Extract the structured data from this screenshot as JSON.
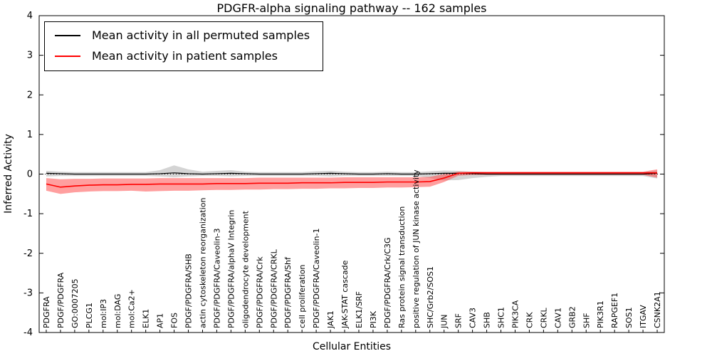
{
  "chart_data": {
    "type": "line",
    "title": "PDGFR-alpha signaling pathway -- 162 samples",
    "xlabel": "Cellular Entities",
    "ylabel": "Inferred Activity",
    "ylim": [
      -4,
      4
    ],
    "y_ticks": [
      -4,
      -3,
      -2,
      -1,
      0,
      1,
      2,
      3,
      4
    ],
    "grid": false,
    "legend_position": "upper left",
    "zero_line": 0,
    "categories": [
      "PDGFRA",
      "PDGF/PDGFRA",
      "GO:0007205",
      "PLCG1",
      "mol:IP3",
      "mol:DAG",
      "mol:Ca2+",
      "ELK1",
      "AP1",
      "FOS",
      "PDGF/PDGFRA/SHB",
      "actin cytoskeleton reorganization",
      "PDGF/PDGFRA/Caveolin-3",
      "PDGF/PDGFRA/alphaV Integrin",
      "oligodendrocyte development",
      "PDGF/PDGFRA/Crk",
      "PDGF/PDGFRA/CRKL",
      "PDGF/PDGFRA/Shf",
      "cell proliferation",
      "PDGF/PDGFRA/Caveolin-1",
      "JAK1",
      "JAK-STAT cascade",
      "ELK1/SRF",
      "PI3K",
      "PDGF/PDGFRA/Crk/C3G",
      "Ras protein signal transduction",
      "positive regulation of JUN kinase activity",
      "SHC/Grb2/SOS1",
      "JUN",
      "SRF",
      "CAV3",
      "SHB",
      "SHC1",
      "PIK3CA",
      "CRK",
      "CRKL",
      "CAV1",
      "GRB2",
      "SHF",
      "PIK3R1",
      "RAPGEF1",
      "SOS1",
      "ITGAV",
      "CSNK2A1"
    ],
    "series": [
      {
        "name": "Mean activity in all permuted samples",
        "color": "#000000",
        "band_color": "#aaaaaa",
        "band_opacity": 0.5,
        "values": [
          0.02,
          0.01,
          0.0,
          0.0,
          0.0,
          0.0,
          0.0,
          0.0,
          0.01,
          0.03,
          0.01,
          0.0,
          0.01,
          0.02,
          0.01,
          0.0,
          0.0,
          0.0,
          0.0,
          0.01,
          0.02,
          0.01,
          0.0,
          0.0,
          0.01,
          0.0,
          0.0,
          0.01,
          0.02,
          0.02,
          0.01,
          0.0,
          0.0,
          0.0,
          0.0,
          0.0,
          0.0,
          0.0,
          0.0,
          0.0,
          0.0,
          0.0,
          0.0,
          0.02
        ],
        "band_upper": [
          0.08,
          0.06,
          0.05,
          0.05,
          0.05,
          0.05,
          0.05,
          0.05,
          0.1,
          0.22,
          0.12,
          0.06,
          0.08,
          0.1,
          0.06,
          0.05,
          0.05,
          0.05,
          0.05,
          0.07,
          0.08,
          0.06,
          0.05,
          0.05,
          0.06,
          0.05,
          0.05,
          0.07,
          0.09,
          0.08,
          0.06,
          0.05,
          0.05,
          0.05,
          0.05,
          0.05,
          0.05,
          0.05,
          0.05,
          0.05,
          0.05,
          0.05,
          0.05,
          0.09
        ],
        "band_lower": [
          -0.06,
          -0.05,
          -0.05,
          -0.05,
          -0.05,
          -0.05,
          -0.05,
          -0.05,
          -0.06,
          -0.08,
          -0.06,
          -0.05,
          -0.05,
          -0.06,
          -0.05,
          -0.05,
          -0.05,
          -0.05,
          -0.05,
          -0.05,
          -0.06,
          -0.05,
          -0.05,
          -0.05,
          -0.05,
          -0.05,
          -0.05,
          -0.1,
          -0.16,
          -0.15,
          -0.1,
          -0.07,
          -0.05,
          -0.05,
          -0.05,
          -0.05,
          -0.05,
          -0.05,
          -0.05,
          -0.05,
          -0.05,
          -0.05,
          -0.05,
          -0.11
        ]
      },
      {
        "name": "Mean activity in patient samples",
        "color": "#ff0000",
        "band_color": "#ff4040",
        "band_opacity": 0.5,
        "values": [
          -0.25,
          -0.33,
          -0.3,
          -0.28,
          -0.27,
          -0.27,
          -0.26,
          -0.26,
          -0.25,
          -0.25,
          -0.25,
          -0.25,
          -0.24,
          -0.24,
          -0.24,
          -0.23,
          -0.23,
          -0.23,
          -0.22,
          -0.22,
          -0.22,
          -0.21,
          -0.21,
          -0.21,
          -0.2,
          -0.2,
          -0.2,
          -0.19,
          -0.1,
          0.02,
          0.03,
          0.03,
          0.03,
          0.03,
          0.03,
          0.03,
          0.03,
          0.03,
          0.03,
          0.03,
          0.03,
          0.03,
          0.03,
          0.03
        ],
        "band_upper": [
          -0.1,
          -0.13,
          -0.12,
          -0.12,
          -0.11,
          -0.11,
          -0.11,
          -0.11,
          -0.1,
          -0.1,
          -0.1,
          -0.1,
          -0.1,
          -0.1,
          -0.1,
          -0.09,
          -0.09,
          -0.09,
          -0.09,
          -0.09,
          -0.09,
          -0.08,
          -0.08,
          -0.08,
          -0.08,
          -0.08,
          -0.08,
          -0.07,
          0.0,
          0.06,
          0.06,
          0.06,
          0.06,
          0.06,
          0.06,
          0.06,
          0.06,
          0.06,
          0.06,
          0.06,
          0.06,
          0.06,
          0.06,
          0.12
        ],
        "band_lower": [
          -0.42,
          -0.5,
          -0.46,
          -0.44,
          -0.43,
          -0.43,
          -0.42,
          -0.44,
          -0.43,
          -0.42,
          -0.42,
          -0.41,
          -0.4,
          -0.4,
          -0.39,
          -0.39,
          -0.38,
          -0.38,
          -0.37,
          -0.37,
          -0.36,
          -0.36,
          -0.35,
          -0.35,
          -0.34,
          -0.34,
          -0.33,
          -0.32,
          -0.2,
          -0.04,
          -0.02,
          -0.02,
          -0.02,
          -0.02,
          -0.02,
          -0.02,
          -0.02,
          -0.02,
          -0.02,
          -0.02,
          -0.02,
          -0.02,
          -0.02,
          -0.09
        ]
      }
    ]
  }
}
